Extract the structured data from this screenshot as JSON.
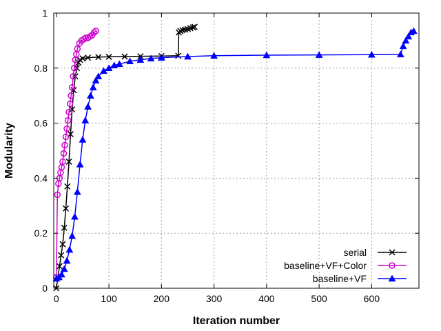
{
  "chart_data": {
    "type": "line",
    "title": "",
    "xlabel": "Iteration number",
    "ylabel": "Modularity",
    "xlim": [
      -5,
      690
    ],
    "ylim": [
      0,
      1
    ],
    "xticks": [
      0,
      100,
      200,
      300,
      400,
      500,
      600
    ],
    "yticks": [
      0,
      0.2,
      0.4,
      0.6,
      0.8,
      1
    ],
    "grid": true,
    "legend_position": "bottom-right",
    "series": [
      {
        "name": "serial",
        "color": "#000000",
        "marker": "cross",
        "x": [
          0,
          3,
          6,
          9,
          12,
          15,
          18,
          21,
          24,
          27,
          30,
          33,
          36,
          39,
          42,
          45,
          50,
          60,
          80,
          100,
          130,
          160,
          200,
          232,
          233,
          236,
          240,
          245,
          250,
          255,
          260,
          263
        ],
        "y": [
          0.0,
          0.04,
          0.08,
          0.12,
          0.16,
          0.22,
          0.29,
          0.37,
          0.46,
          0.56,
          0.65,
          0.72,
          0.77,
          0.8,
          0.82,
          0.83,
          0.835,
          0.838,
          0.84,
          0.841,
          0.842,
          0.843,
          0.844,
          0.845,
          0.93,
          0.935,
          0.938,
          0.94,
          0.942,
          0.945,
          0.948,
          0.95
        ]
      },
      {
        "name": "baseline+VF+Color",
        "color": "#cc00cc",
        "marker": "circle",
        "x": [
          0,
          2,
          4,
          6,
          8,
          10,
          12,
          14,
          16,
          18,
          20,
          22,
          24,
          26,
          28,
          30,
          32,
          34,
          36,
          38,
          40,
          44,
          48,
          52,
          56,
          60,
          64,
          68,
          72,
          75
        ],
        "y": [
          0.04,
          0.34,
          0.38,
          0.4,
          0.42,
          0.44,
          0.46,
          0.49,
          0.52,
          0.55,
          0.58,
          0.61,
          0.64,
          0.67,
          0.7,
          0.73,
          0.77,
          0.8,
          0.83,
          0.85,
          0.87,
          0.89,
          0.9,
          0.905,
          0.91,
          0.91,
          0.915,
          0.92,
          0.93,
          0.935
        ]
      },
      {
        "name": "baseline+VF",
        "color": "#0000ff",
        "marker": "triangle",
        "x": [
          0,
          5,
          10,
          15,
          20,
          25,
          30,
          35,
          40,
          45,
          50,
          55,
          60,
          65,
          70,
          75,
          80,
          90,
          100,
          110,
          120,
          140,
          160,
          180,
          200,
          250,
          300,
          400,
          500,
          600,
          655,
          660,
          665,
          670,
          675,
          680
        ],
        "y": [
          0.035,
          0.04,
          0.05,
          0.07,
          0.1,
          0.14,
          0.19,
          0.26,
          0.35,
          0.45,
          0.54,
          0.61,
          0.66,
          0.7,
          0.73,
          0.755,
          0.77,
          0.79,
          0.8,
          0.81,
          0.815,
          0.825,
          0.83,
          0.835,
          0.838,
          0.842,
          0.845,
          0.847,
          0.848,
          0.849,
          0.85,
          0.88,
          0.9,
          0.915,
          0.93,
          0.935
        ]
      }
    ]
  }
}
